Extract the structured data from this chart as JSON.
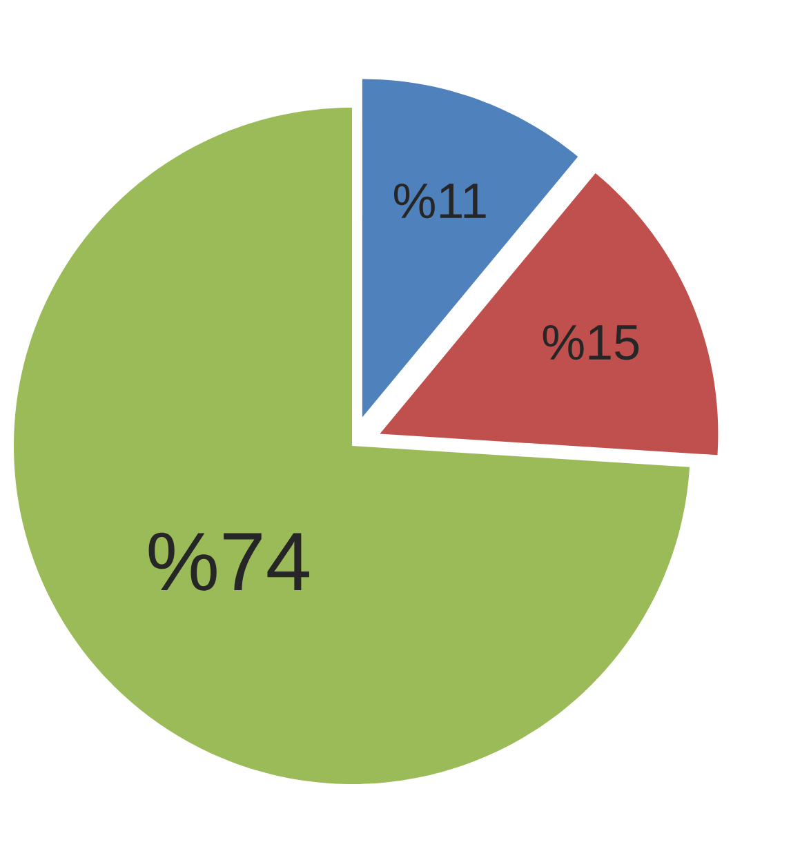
{
  "chart_data": {
    "type": "pie",
    "categories": [
      null,
      null,
      null
    ],
    "values": [
      11,
      15,
      74
    ],
    "colors": [
      "#4f81bd",
      "#c0504d",
      "#9bbb59"
    ],
    "value_labels": [
      "%11",
      "%15",
      "%74"
    ]
  }
}
